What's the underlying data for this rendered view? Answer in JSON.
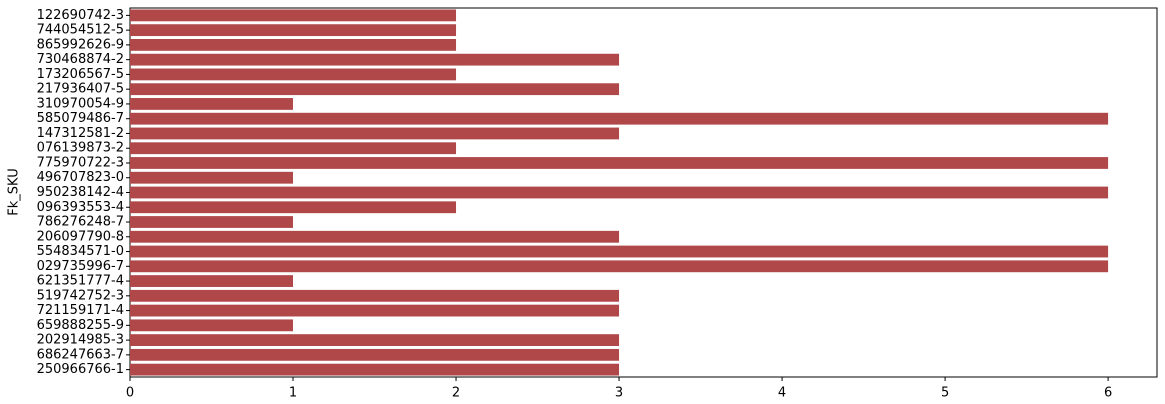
{
  "chart_data": {
    "type": "barh",
    "y_label": "Fk_SKU",
    "categories": [
      "122690742-3",
      "744054512-5",
      "865992626-9",
      "730468874-2",
      "173206567-5",
      "217936407-5",
      "310970054-9",
      "585079486-7",
      "147312581-2",
      "076139873-2",
      "775970722-3",
      "496707823-0",
      "950238142-4",
      "096393553-4",
      "786276248-7",
      "206097790-8",
      "554834571-0",
      "029735996-7",
      "621351777-4",
      "519742752-3",
      "721159171-4",
      "659888255-9",
      "202914985-3",
      "686247663-7",
      "250966766-1"
    ],
    "values": [
      2,
      2,
      2,
      3,
      2,
      3,
      1,
      6,
      3,
      2,
      6,
      1,
      6,
      2,
      1,
      3,
      6,
      6,
      1,
      3,
      3,
      1,
      3,
      3,
      3
    ],
    "color": "#b0484a",
    "xlim": [
      0,
      6.3
    ],
    "xticks": [
      0,
      1,
      2,
      3,
      4,
      5,
      6
    ],
    "grid": false
  }
}
